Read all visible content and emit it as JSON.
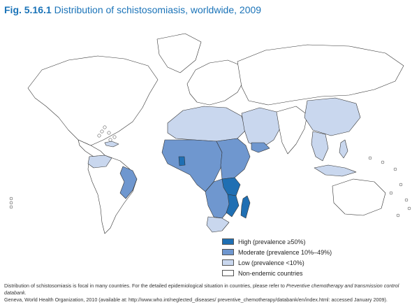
{
  "figure": {
    "number": "Fig. 5.16.1",
    "title": "Distribution of schistosomiasis, worldwide, 2009"
  },
  "colors": {
    "high": "#1f6fb3",
    "moderate": "#6f97cf",
    "low": "#c9d7ee",
    "none": "#ffffff",
    "border": "#333333"
  },
  "legend": {
    "items": [
      {
        "key": "high",
        "label": "High (prevalence ≥50%)"
      },
      {
        "key": "moderate",
        "label": "Moderate (prevalence 10%–49%)"
      },
      {
        "key": "low",
        "label": "Low (prevalence <10%)"
      },
      {
        "key": "none",
        "label": "Non-endemic countries"
      }
    ]
  },
  "regions": [
    {
      "id": "north-america",
      "category": "none"
    },
    {
      "id": "greenland",
      "category": "none"
    },
    {
      "id": "central-america",
      "category": "none"
    },
    {
      "id": "caribbean",
      "category": "low"
    },
    {
      "id": "south-america",
      "category": "none"
    },
    {
      "id": "venezuela",
      "category": "low"
    },
    {
      "id": "brazil-east",
      "category": "moderate"
    },
    {
      "id": "europe",
      "category": "none"
    },
    {
      "id": "russia-asia",
      "category": "none"
    },
    {
      "id": "middle-east",
      "category": "low"
    },
    {
      "id": "yemen",
      "category": "moderate"
    },
    {
      "id": "north-africa",
      "category": "low"
    },
    {
      "id": "west-central-africa",
      "category": "moderate"
    },
    {
      "id": "ghana",
      "category": "high"
    },
    {
      "id": "east-africa",
      "category": "moderate"
    },
    {
      "id": "southern-africa",
      "category": "moderate"
    },
    {
      "id": "south-africa",
      "category": "low"
    },
    {
      "id": "tanzania",
      "category": "high"
    },
    {
      "id": "mozambique",
      "category": "high"
    },
    {
      "id": "madagascar",
      "category": "high"
    },
    {
      "id": "south-asia",
      "category": "none"
    },
    {
      "id": "china",
      "category": "low"
    },
    {
      "id": "southeast-asia",
      "category": "low"
    },
    {
      "id": "philippines",
      "category": "low"
    },
    {
      "id": "indonesia",
      "category": "low"
    },
    {
      "id": "australia",
      "category": "none"
    }
  ],
  "footer": {
    "line1_text": "Distribution of schistosomiasis is focal in many countries. For the detailed epidemiological situation in countries, please refer to ",
    "line1_emph": "Preventive chemotherapy and transmission control databank.",
    "line2": "Geneva, World Health Organization, 2010 (available at: http://www.who.int/neglected_diseases/ preventive_chemotherapy/databank/en/index.html: accessed January 2009)."
  }
}
